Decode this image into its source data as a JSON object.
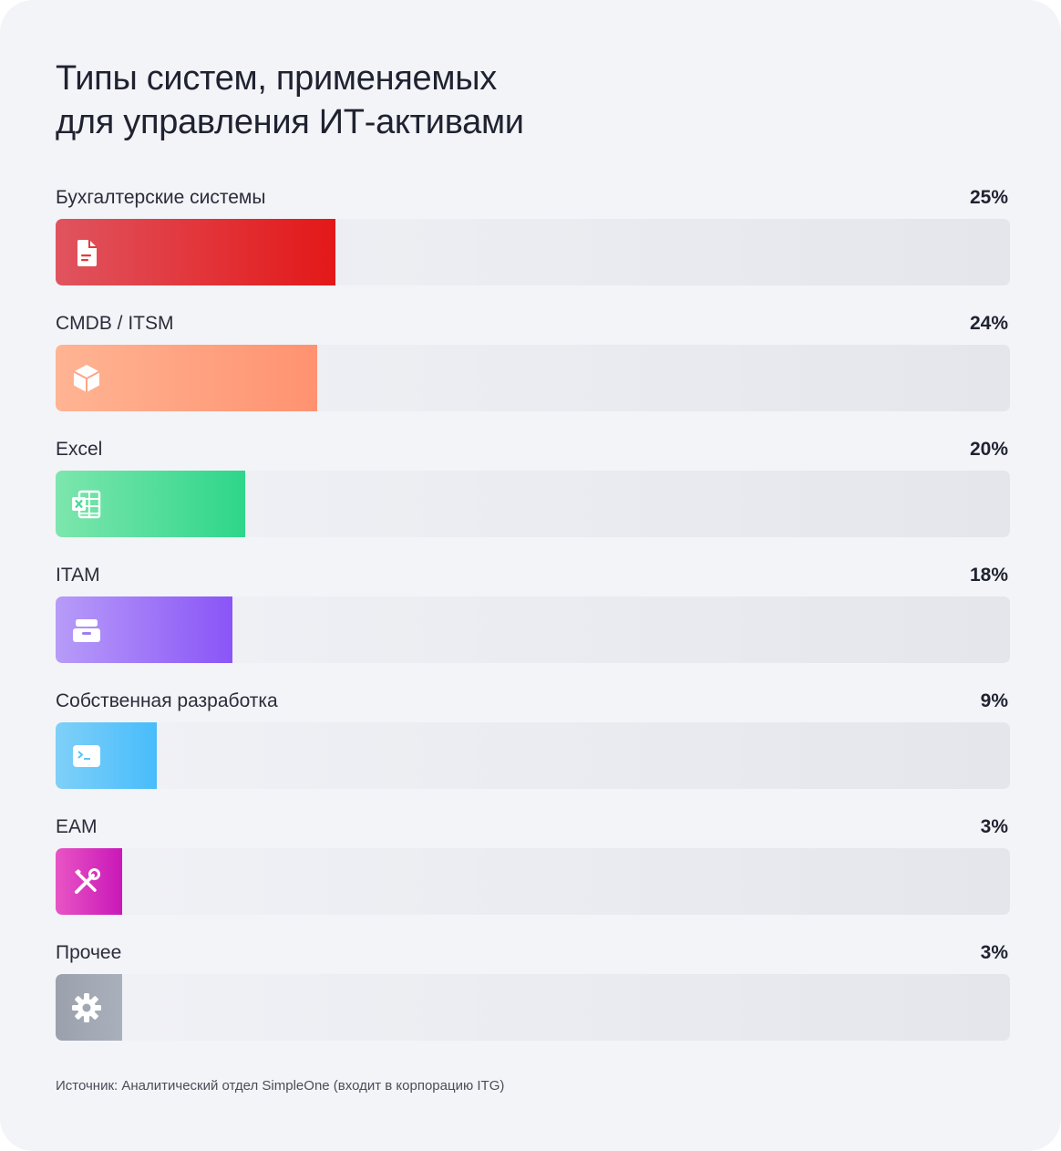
{
  "chart_data": {
    "type": "bar",
    "orientation": "horizontal",
    "title": "Типы систем, применяемых для управления ИТ-активами",
    "title_lines": [
      "Типы систем, применяемых",
      "для управления ИТ-активами"
    ],
    "xlim": [
      0,
      100
    ],
    "unit": "%",
    "categories": [
      "Бухгалтерские системы",
      "CMDB / ITSM",
      "Excel",
      "ITAM",
      "Собственная разработка",
      "EAM",
      "Прочее"
    ],
    "values": [
      25,
      24,
      20,
      18,
      9,
      3,
      3
    ],
    "value_labels": [
      "25%",
      "24%",
      "20%",
      "18%",
      "9%",
      "3%",
      "3%"
    ],
    "fill_fractions": [
      0.293,
      0.274,
      0.199,
      0.185,
      0.106,
      0.07,
      0.07
    ],
    "colors": [
      [
        "#e0545f",
        "#e31818"
      ],
      [
        "#ffb493",
        "#ff9270"
      ],
      [
        "#7de6ad",
        "#2ed68a"
      ],
      [
        "#b79cf8",
        "#8a55f7"
      ],
      [
        "#7fd0f8",
        "#48bcfb"
      ],
      [
        "#e855c4",
        "#c918b8"
      ],
      [
        "#9aa1ad",
        "#aab0bb"
      ]
    ],
    "icons": [
      "document-icon",
      "cube-icon",
      "spreadsheet-icon",
      "archive-box-icon",
      "terminal-icon",
      "tools-icon",
      "gear-icon"
    ],
    "source": "Источник: Аналитический отдел SimpleOne (входит в корпорацию ITG)"
  }
}
